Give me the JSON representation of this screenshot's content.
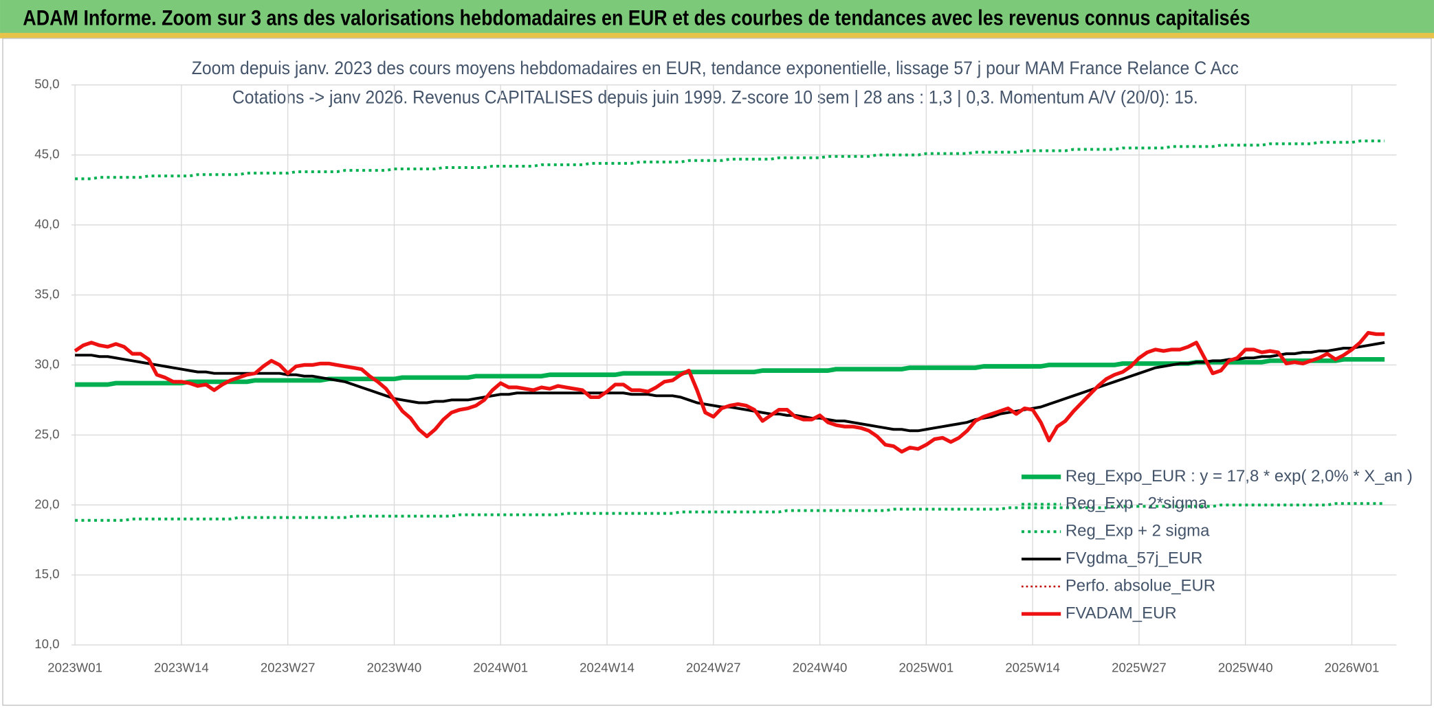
{
  "chart_data": {
    "type": "line",
    "title": "ADAM Informe. Zoom sur 3 ans des valorisations hebdomadaires en EUR et des courbes de tendances avec les revenus connus capitalisés",
    "subtitle": [
      "Zoom depuis janv. 2023 des cours moyens hebdomadaires en EUR, tendance exponentielle, lissage 57 j pour MAM France Relance C Acc",
      "Cotations -> janv 2026. Revenus CAPITALISES depuis juin 1999. Z-score 10 sem | 28 ans : 1,3 | 0,3. Momentum A/V (20/0): 15."
    ],
    "grid": true,
    "ylim": [
      10,
      50
    ],
    "yticks": [
      {
        "value": 10,
        "label": "10,0"
      },
      {
        "value": 15,
        "label": "15,0"
      },
      {
        "value": 20,
        "label": "20,0"
      },
      {
        "value": 25,
        "label": "25,0"
      },
      {
        "value": 30,
        "label": "30,0"
      },
      {
        "value": 35,
        "label": "35,0"
      },
      {
        "value": 40,
        "label": "40,0"
      },
      {
        "value": 45,
        "label": "45,0"
      },
      {
        "value": 50,
        "label": "50,0"
      }
    ],
    "categories": [
      "2023W01",
      null,
      null,
      null,
      null,
      null,
      null,
      null,
      null,
      null,
      null,
      null,
      null,
      "2023W14",
      null,
      null,
      null,
      null,
      null,
      null,
      null,
      null,
      null,
      null,
      null,
      null,
      "2023W27",
      null,
      null,
      null,
      null,
      null,
      null,
      null,
      null,
      null,
      null,
      null,
      null,
      "2023W40",
      null,
      null,
      null,
      null,
      null,
      null,
      null,
      null,
      null,
      null,
      null,
      null,
      "2024W01",
      null,
      null,
      null,
      null,
      null,
      null,
      null,
      null,
      null,
      null,
      null,
      null,
      "2024W14",
      null,
      null,
      null,
      null,
      null,
      null,
      null,
      null,
      null,
      null,
      null,
      null,
      "2024W27",
      null,
      null,
      null,
      null,
      null,
      null,
      null,
      null,
      null,
      null,
      null,
      null,
      "2024W40",
      null,
      null,
      null,
      null,
      null,
      null,
      null,
      null,
      null,
      null,
      null,
      null,
      "2025W01",
      null,
      null,
      null,
      null,
      null,
      null,
      null,
      null,
      null,
      null,
      null,
      null,
      "2025W14",
      null,
      null,
      null,
      null,
      null,
      null,
      null,
      null,
      null,
      null,
      null,
      null,
      "2025W27",
      null,
      null,
      null,
      null,
      null,
      null,
      null,
      null,
      null,
      null,
      null,
      null,
      "2025W40",
      null,
      null,
      null,
      null,
      null,
      null,
      null,
      null,
      null,
      null,
      null,
      null,
      "2026W01",
      null,
      null,
      null,
      null
    ],
    "series": [
      {
        "name": "Reg_Expo_EUR : y = 17,8 * exp( 2,0% *  X_an )",
        "color": "#00b050",
        "style": "solid",
        "width": 5,
        "values": [
          28.6,
          28.6,
          28.6,
          28.6,
          28.6,
          28.7,
          28.7,
          28.7,
          28.7,
          28.7,
          28.7,
          28.7,
          28.7,
          28.7,
          28.8,
          28.8,
          28.8,
          28.8,
          28.8,
          28.8,
          28.8,
          28.8,
          28.9,
          28.9,
          28.9,
          28.9,
          28.9,
          28.9,
          28.9,
          28.9,
          28.9,
          29.0,
          29.0,
          29.0,
          29.0,
          29.0,
          29.0,
          29.0,
          29.0,
          29.0,
          29.1,
          29.1,
          29.1,
          29.1,
          29.1,
          29.1,
          29.1,
          29.1,
          29.1,
          29.2,
          29.2,
          29.2,
          29.2,
          29.2,
          29.2,
          29.2,
          29.2,
          29.2,
          29.3,
          29.3,
          29.3,
          29.3,
          29.3,
          29.3,
          29.3,
          29.3,
          29.3,
          29.4,
          29.4,
          29.4,
          29.4,
          29.4,
          29.4,
          29.4,
          29.4,
          29.5,
          29.5,
          29.5,
          29.5,
          29.5,
          29.5,
          29.5,
          29.5,
          29.5,
          29.6,
          29.6,
          29.6,
          29.6,
          29.6,
          29.6,
          29.6,
          29.6,
          29.6,
          29.7,
          29.7,
          29.7,
          29.7,
          29.7,
          29.7,
          29.7,
          29.7,
          29.7,
          29.8,
          29.8,
          29.8,
          29.8,
          29.8,
          29.8,
          29.8,
          29.8,
          29.8,
          29.9,
          29.9,
          29.9,
          29.9,
          29.9,
          29.9,
          29.9,
          29.9,
          30.0,
          30.0,
          30.0,
          30.0,
          30.0,
          30.0,
          30.0,
          30.0,
          30.0,
          30.1,
          30.1,
          30.1,
          30.1,
          30.1,
          30.1,
          30.1,
          30.1,
          30.1,
          30.2,
          30.2,
          30.2,
          30.2,
          30.2,
          30.2,
          30.2,
          30.2,
          30.2,
          30.3,
          30.3,
          30.3,
          30.3,
          30.3,
          30.3,
          30.3,
          30.3,
          30.3,
          30.4,
          30.4,
          30.4,
          30.4,
          30.4,
          30.4
        ]
      },
      {
        "name": "Reg_Exp - 2*sigma",
        "color": "#00b050",
        "style": "dotted",
        "width": 3,
        "values": [
          18.9,
          18.9,
          18.9,
          18.9,
          18.9,
          18.9,
          18.9,
          19.0,
          19.0,
          19.0,
          19.0,
          19.0,
          19.0,
          19.0,
          19.0,
          19.0,
          19.0,
          19.0,
          19.0,
          19.0,
          19.1,
          19.1,
          19.1,
          19.1,
          19.1,
          19.1,
          19.1,
          19.1,
          19.1,
          19.1,
          19.1,
          19.1,
          19.1,
          19.1,
          19.2,
          19.2,
          19.2,
          19.2,
          19.2,
          19.2,
          19.2,
          19.2,
          19.2,
          19.2,
          19.2,
          19.2,
          19.2,
          19.3,
          19.3,
          19.3,
          19.3,
          19.3,
          19.3,
          19.3,
          19.3,
          19.3,
          19.3,
          19.3,
          19.3,
          19.3,
          19.4,
          19.4,
          19.4,
          19.4,
          19.4,
          19.4,
          19.4,
          19.4,
          19.4,
          19.4,
          19.4,
          19.4,
          19.4,
          19.4,
          19.5,
          19.5,
          19.5,
          19.5,
          19.5,
          19.5,
          19.5,
          19.5,
          19.5,
          19.5,
          19.5,
          19.5,
          19.5,
          19.6,
          19.6,
          19.6,
          19.6,
          19.6,
          19.6,
          19.6,
          19.6,
          19.6,
          19.6,
          19.6,
          19.6,
          19.6,
          19.7,
          19.7,
          19.7,
          19.7,
          19.7,
          19.7,
          19.7,
          19.7,
          19.7,
          19.7,
          19.7,
          19.7,
          19.7,
          19.7,
          19.8,
          19.8,
          19.8,
          19.8,
          19.8,
          19.8,
          19.8,
          19.8,
          19.8,
          19.8,
          19.8,
          19.8,
          19.8,
          19.9,
          19.9,
          19.9,
          19.9,
          19.9,
          19.9,
          19.9,
          19.9,
          19.9,
          19.9,
          19.9,
          19.9,
          19.9,
          20.0,
          20.0,
          20.0,
          20.0,
          20.0,
          20.0,
          20.0,
          20.0,
          20.0,
          20.0,
          20.0,
          20.0,
          20.0,
          20.0,
          20.1,
          20.1,
          20.1,
          20.1,
          20.1,
          20.1,
          20.1
        ]
      },
      {
        "name": "Reg_Exp + 2 sigma",
        "color": "#00b050",
        "style": "dotted",
        "width": 3,
        "values": [
          43.3,
          43.3,
          43.3,
          43.4,
          43.4,
          43.4,
          43.4,
          43.4,
          43.4,
          43.5,
          43.5,
          43.5,
          43.5,
          43.5,
          43.5,
          43.6,
          43.6,
          43.6,
          43.6,
          43.6,
          43.6,
          43.7,
          43.7,
          43.7,
          43.7,
          43.7,
          43.7,
          43.8,
          43.8,
          43.8,
          43.8,
          43.8,
          43.8,
          43.9,
          43.9,
          43.9,
          43.9,
          43.9,
          43.9,
          44.0,
          44.0,
          44.0,
          44.0,
          44.0,
          44.0,
          44.1,
          44.1,
          44.1,
          44.1,
          44.1,
          44.1,
          44.2,
          44.2,
          44.2,
          44.2,
          44.2,
          44.2,
          44.3,
          44.3,
          44.3,
          44.3,
          44.3,
          44.3,
          44.4,
          44.4,
          44.4,
          44.4,
          44.4,
          44.4,
          44.5,
          44.5,
          44.5,
          44.5,
          44.5,
          44.5,
          44.6,
          44.6,
          44.6,
          44.6,
          44.6,
          44.7,
          44.7,
          44.7,
          44.7,
          44.7,
          44.7,
          44.8,
          44.8,
          44.8,
          44.8,
          44.8,
          44.8,
          44.9,
          44.9,
          44.9,
          44.9,
          44.9,
          44.9,
          45.0,
          45.0,
          45.0,
          45.0,
          45.0,
          45.0,
          45.1,
          45.1,
          45.1,
          45.1,
          45.1,
          45.1,
          45.2,
          45.2,
          45.2,
          45.2,
          45.2,
          45.2,
          45.3,
          45.3,
          45.3,
          45.3,
          45.3,
          45.3,
          45.4,
          45.4,
          45.4,
          45.4,
          45.4,
          45.4,
          45.5,
          45.5,
          45.5,
          45.5,
          45.5,
          45.5,
          45.6,
          45.6,
          45.6,
          45.6,
          45.6,
          45.6,
          45.7,
          45.7,
          45.7,
          45.7,
          45.7,
          45.7,
          45.8,
          45.8,
          45.8,
          45.8,
          45.8,
          45.8,
          45.9,
          45.9,
          45.9,
          45.9,
          45.9,
          46.0,
          46.0,
          46.0,
          46.0
        ]
      },
      {
        "name": "FVgdma_57j_EUR",
        "color": "#000000",
        "style": "solid",
        "width": 3,
        "values": [
          30.7,
          30.7,
          30.7,
          30.6,
          30.6,
          30.5,
          30.4,
          30.3,
          30.2,
          30.1,
          30.0,
          29.9,
          29.8,
          29.7,
          29.6,
          29.5,
          29.5,
          29.4,
          29.4,
          29.4,
          29.4,
          29.4,
          29.4,
          29.4,
          29.4,
          29.4,
          29.3,
          29.3,
          29.2,
          29.2,
          29.1,
          29.0,
          28.9,
          28.8,
          28.6,
          28.4,
          28.2,
          28.0,
          27.8,
          27.6,
          27.5,
          27.4,
          27.3,
          27.3,
          27.4,
          27.4,
          27.5,
          27.5,
          27.5,
          27.6,
          27.7,
          27.8,
          27.9,
          27.9,
          28.0,
          28.0,
          28.0,
          28.0,
          28.0,
          28.0,
          28.0,
          28.0,
          28.0,
          28.0,
          28.0,
          28.0,
          28.0,
          28.0,
          27.9,
          27.9,
          27.9,
          27.8,
          27.8,
          27.8,
          27.7,
          27.5,
          27.3,
          27.2,
          27.1,
          27.0,
          27.0,
          26.9,
          26.8,
          26.7,
          26.6,
          26.5,
          26.5,
          26.4,
          26.4,
          26.3,
          26.2,
          26.2,
          26.1,
          26.0,
          26.0,
          25.9,
          25.8,
          25.7,
          25.6,
          25.5,
          25.4,
          25.4,
          25.3,
          25.3,
          25.4,
          25.5,
          25.6,
          25.7,
          25.8,
          25.9,
          26.1,
          26.2,
          26.3,
          26.5,
          26.6,
          26.7,
          26.8,
          26.9,
          27.0,
          27.2,
          27.4,
          27.6,
          27.8,
          28.0,
          28.2,
          28.4,
          28.6,
          28.8,
          29.0,
          29.2,
          29.4,
          29.6,
          29.8,
          29.9,
          30.0,
          30.1,
          30.1,
          30.2,
          30.2,
          30.3,
          30.3,
          30.4,
          30.4,
          30.5,
          30.5,
          30.6,
          30.6,
          30.7,
          30.8,
          30.8,
          30.9,
          30.9,
          31.0,
          31.0,
          31.1,
          31.2,
          31.2,
          31.3,
          31.4,
          31.5,
          31.6
        ]
      },
      {
        "name": "Perfo. absolue_EUR",
        "color": "#c00000",
        "style": "dotted",
        "width": 2,
        "values": [
          31.0,
          31.4,
          31.6,
          31.4,
          31.3,
          31.5,
          31.3,
          30.8,
          30.8,
          30.4,
          29.3,
          29.1,
          28.8,
          28.8,
          28.7,
          28.5,
          28.6,
          28.2,
          28.6,
          28.9,
          29.1,
          29.3,
          29.4,
          29.9,
          30.3,
          30.0,
          29.4,
          29.9,
          30.0,
          30.0,
          30.1,
          30.1,
          30.0,
          29.9,
          29.8,
          29.7,
          29.2,
          28.8,
          28.3,
          27.5,
          26.7,
          26.2,
          25.4,
          24.9,
          25.4,
          26.1,
          26.6,
          26.8,
          26.9,
          27.1,
          27.5,
          28.2,
          28.7,
          28.4,
          28.4,
          28.3,
          28.2,
          28.4,
          28.3,
          28.5,
          28.4,
          28.3,
          28.2,
          27.7,
          27.7,
          28.1,
          28.6,
          28.6,
          28.2,
          28.2,
          28.1,
          28.4,
          28.8,
          28.9,
          29.3,
          29.6,
          28.2,
          26.6,
          26.3,
          26.9,
          27.1,
          27.2,
          27.1,
          26.8,
          26.0,
          26.4,
          26.8,
          26.8,
          26.3,
          26.1,
          26.1,
          26.4,
          25.9,
          25.7,
          25.6,
          25.6,
          25.5,
          25.3,
          24.9,
          24.3,
          24.2,
          23.8,
          24.1,
          24.0,
          24.3,
          24.7,
          24.8,
          24.5,
          24.8,
          25.3,
          26.0,
          26.3,
          26.5,
          26.7,
          26.9,
          26.5,
          26.9,
          26.8,
          25.9,
          24.6,
          25.6,
          26.0,
          26.7,
          27.3,
          27.9,
          28.5,
          29.0,
          29.3,
          29.5,
          29.9,
          30.5,
          30.9,
          31.1,
          31.0,
          31.1,
          31.1,
          31.3,
          31.6,
          30.5,
          29.4,
          29.6,
          30.3,
          30.5,
          31.1,
          31.1,
          30.9,
          31.0,
          30.9,
          30.1,
          30.2,
          30.1,
          30.3,
          30.5,
          30.8,
          30.4,
          30.7,
          31.1,
          31.6,
          32.3,
          32.2,
          32.2
        ]
      },
      {
        "name": "FVADAM_EUR",
        "color": "#ee1111",
        "style": "solid",
        "width": 4,
        "values": [
          31.0,
          31.4,
          31.6,
          31.4,
          31.3,
          31.5,
          31.3,
          30.8,
          30.8,
          30.4,
          29.3,
          29.1,
          28.8,
          28.8,
          28.7,
          28.5,
          28.6,
          28.2,
          28.6,
          28.9,
          29.1,
          29.3,
          29.4,
          29.9,
          30.3,
          30.0,
          29.4,
          29.9,
          30.0,
          30.0,
          30.1,
          30.1,
          30.0,
          29.9,
          29.8,
          29.7,
          29.2,
          28.8,
          28.3,
          27.5,
          26.7,
          26.2,
          25.4,
          24.9,
          25.4,
          26.1,
          26.6,
          26.8,
          26.9,
          27.1,
          27.5,
          28.2,
          28.7,
          28.4,
          28.4,
          28.3,
          28.2,
          28.4,
          28.3,
          28.5,
          28.4,
          28.3,
          28.2,
          27.7,
          27.7,
          28.1,
          28.6,
          28.6,
          28.2,
          28.2,
          28.1,
          28.4,
          28.8,
          28.9,
          29.3,
          29.6,
          28.2,
          26.6,
          26.3,
          26.9,
          27.1,
          27.2,
          27.1,
          26.8,
          26.0,
          26.4,
          26.8,
          26.8,
          26.3,
          26.1,
          26.1,
          26.4,
          25.9,
          25.7,
          25.6,
          25.6,
          25.5,
          25.3,
          24.9,
          24.3,
          24.2,
          23.8,
          24.1,
          24.0,
          24.3,
          24.7,
          24.8,
          24.5,
          24.8,
          25.3,
          26.0,
          26.3,
          26.5,
          26.7,
          26.9,
          26.5,
          26.9,
          26.8,
          25.9,
          24.6,
          25.6,
          26.0,
          26.7,
          27.3,
          27.9,
          28.5,
          29.0,
          29.3,
          29.5,
          29.9,
          30.5,
          30.9,
          31.1,
          31.0,
          31.1,
          31.1,
          31.3,
          31.6,
          30.5,
          29.4,
          29.6,
          30.3,
          30.5,
          31.1,
          31.1,
          30.9,
          31.0,
          30.9,
          30.1,
          30.2,
          30.1,
          30.3,
          30.5,
          30.8,
          30.4,
          30.7,
          31.1,
          31.6,
          32.3,
          32.2,
          32.2
        ]
      }
    ]
  }
}
